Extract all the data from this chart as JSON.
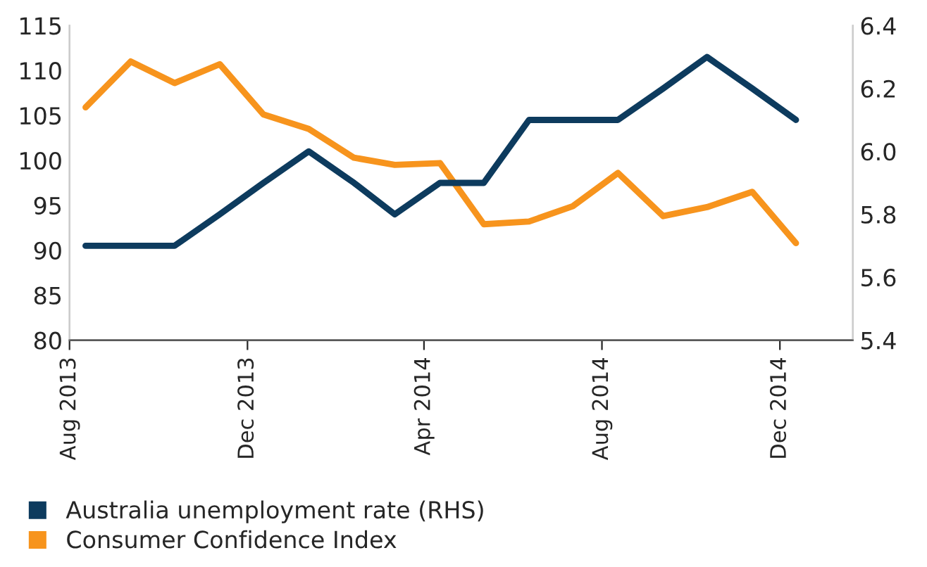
{
  "chart_data": {
    "type": "line",
    "x": [
      "2013-08-12",
      "2013-09-12",
      "2013-10-12",
      "2013-11-12",
      "2013-12-12",
      "2014-01-12",
      "2014-02-12",
      "2014-03-12",
      "2014-04-12",
      "2014-05-12",
      "2014-06-12",
      "2014-07-12",
      "2014-08-12",
      "2014-09-12",
      "2014-10-12",
      "2014-11-12",
      "2014-12-12"
    ],
    "series": [
      {
        "name": "Australia unemployment rate (RHS)",
        "color": "#0d3b5e",
        "axis": "y2",
        "values": [
          5.7,
          5.7,
          5.7,
          5.8,
          5.9,
          6.0,
          5.9,
          5.8,
          5.9,
          5.9,
          6.1,
          6.1,
          6.1,
          6.2,
          6.3,
          6.2,
          6.1
        ]
      },
      {
        "name": "Consumer Confidence Index",
        "color": "#f7941d",
        "values": [
          105.9,
          111.0,
          108.6,
          110.7,
          105.1,
          103.5,
          100.3,
          99.5,
          99.7,
          92.9,
          93.2,
          94.9,
          98.6,
          93.8,
          94.8,
          96.5,
          90.8
        ]
      }
    ],
    "xlim": [
      "2013-08-01",
      "2015-01-20"
    ],
    "xticks": [
      {
        "value": "2013-08-01",
        "label": "Aug 2013"
      },
      {
        "value": "2013-12-01",
        "label": "Dec 2013"
      },
      {
        "value": "2014-04-01",
        "label": "Apr 2014"
      },
      {
        "value": "2014-08-01",
        "label": "Aug 2014"
      },
      {
        "value": "2014-12-01",
        "label": "Dec 2014"
      }
    ],
    "ylim": [
      80,
      115
    ],
    "yticks": [
      80,
      85,
      90,
      95,
      100,
      105,
      110,
      115
    ],
    "y2lim": [
      5.4,
      6.4
    ],
    "y2ticks": [
      5.4,
      5.6,
      5.8,
      {
        "value": 6,
        "label": "6.0"
      },
      6.2,
      6.4
    ],
    "legend": "bottom",
    "grid": false
  }
}
